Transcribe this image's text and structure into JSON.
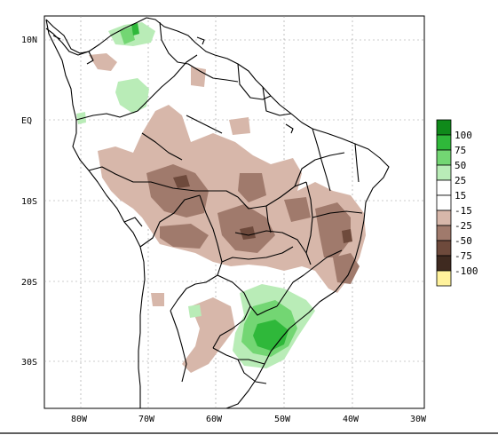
{
  "map": {
    "title": "",
    "lat_labels": [
      "10N",
      "EQ",
      "10S",
      "20S",
      "30S"
    ],
    "lon_labels": [
      "80W",
      "70W",
      "60W",
      "50W",
      "40W",
      "30W"
    ]
  },
  "legend": {
    "bins": [
      {
        "label": "100",
        "color": "#0f8a1a"
      },
      {
        "label": "75",
        "color": "#2fb83a"
      },
      {
        "label": "50",
        "color": "#73d673"
      },
      {
        "label": "25",
        "color": "#b9ecb7"
      },
      {
        "label": "15",
        "color": "#ffffff"
      },
      {
        "label": "-15",
        "color": "#ffffff"
      },
      {
        "label": "-25",
        "color": "#d7b7aa"
      },
      {
        "label": "-50",
        "color": "#a07a6c"
      },
      {
        "label": "-75",
        "color": "#6e4a3c"
      },
      {
        "label": "-100",
        "color": "#3f2a20"
      },
      {
        "label": "",
        "color": "#fff29c"
      }
    ]
  },
  "colors": {
    "dry_light": "#d7b7aa",
    "dry_mid": "#a07a6c",
    "dry_dark": "#6e4a3c",
    "wet_light": "#b9ecb7",
    "wet_mid": "#73d673",
    "wet_dark": "#2fb83a"
  }
}
